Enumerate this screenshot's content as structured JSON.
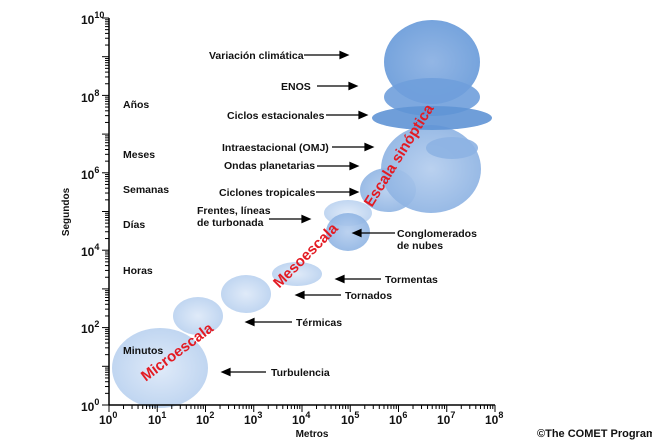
{
  "axes": {
    "x_title": "Metros",
    "y_title": "Segundos",
    "x_ticks": [
      {
        "base": "10",
        "exp": "0"
      },
      {
        "base": "10",
        "exp": "1"
      },
      {
        "base": "10",
        "exp": "2"
      },
      {
        "base": "10",
        "exp": "3"
      },
      {
        "base": "10",
        "exp": "4"
      },
      {
        "base": "10",
        "exp": "5"
      },
      {
        "base": "10",
        "exp": "6"
      },
      {
        "base": "10",
        "exp": "7"
      },
      {
        "base": "10",
        "exp": "8"
      }
    ],
    "y_ticks": [
      {
        "base": "10",
        "exp": "0"
      },
      {
        "base": "10",
        "exp": "2"
      },
      {
        "base": "10",
        "exp": "4"
      },
      {
        "base": "10",
        "exp": "6"
      },
      {
        "base": "10",
        "exp": "8"
      },
      {
        "base": "10",
        "exp": "10"
      }
    ]
  },
  "time_labels": [
    "Minutos",
    "Horas",
    "Días",
    "Semanas",
    "Meses",
    "Años"
  ],
  "phenomena": [
    {
      "lines": [
        "Variación climática"
      ]
    },
    {
      "lines": [
        "ENOS"
      ]
    },
    {
      "lines": [
        "Ciclos estacionales"
      ]
    },
    {
      "lines": [
        "Intraestacional (OMJ)"
      ]
    },
    {
      "lines": [
        "Ondas planetarias"
      ]
    },
    {
      "lines": [
        "Ciclones tropicales"
      ]
    },
    {
      "lines": [
        "Frentes, líneas",
        "de turbonada"
      ]
    },
    {
      "lines": [
        "Conglomerados",
        "de nubes"
      ]
    },
    {
      "lines": [
        "Tormentas"
      ]
    },
    {
      "lines": [
        "Tornados"
      ]
    },
    {
      "lines": [
        "Térmicas"
      ]
    },
    {
      "lines": [
        "Turbulencia"
      ]
    }
  ],
  "scales": [
    "Microescala",
    "Mesoescala",
    "Escala sinóptica"
  ],
  "credit": "©The COMET Program",
  "colors": {
    "ellipse_dark": "#5b8fd3",
    "ellipse_light": "#a9c6ec",
    "scale_text": "#e31b23",
    "axis": "#000000"
  }
}
